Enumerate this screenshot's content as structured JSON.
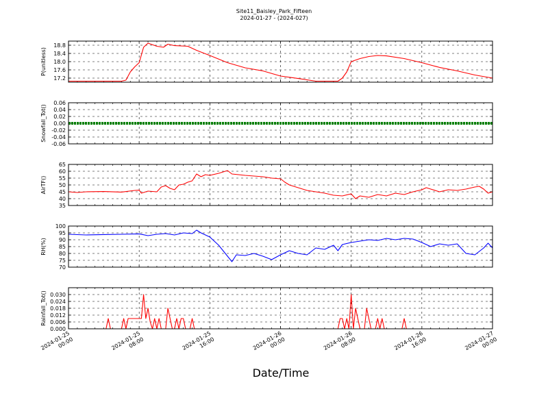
{
  "chart_data": {
    "type": "line",
    "title": "Site11_Baisley_Park_Fifteen",
    "subtitle": "2024-01-27 - (2024-027)",
    "xlabel": "Date/Time",
    "x_range": [
      "2024-01-25 00:00",
      "2024-01-27 00:00"
    ],
    "x_ticks": [
      {
        "value": "2024-01-25 00:00",
        "line1": "2024-01-25",
        "line2": "00:00"
      },
      {
        "value": "2024-01-25 08:00",
        "line1": "2024-01-25",
        "line2": "08:00"
      },
      {
        "value": "2024-01-25 16:00",
        "line1": "2024-01-25",
        "line2": "16:00"
      },
      {
        "value": "2024-01-26 00:00",
        "line1": "2024-01-26",
        "line2": "00:00"
      },
      {
        "value": "2024-01-26 08:00",
        "line1": "2024-01-26",
        "line2": "08:00"
      },
      {
        "value": "2024-01-26 16:00",
        "line1": "2024-01-26",
        "line2": "16:00"
      },
      {
        "value": "2024-01-27 00:00",
        "line1": "2024-01-27",
        "line2": "00:00"
      }
    ],
    "grid": true,
    "panels": [
      {
        "ylabel": "P(unitless)",
        "ylim": [
          17.0,
          19.0
        ],
        "yticks": [
          "18.8",
          "18.4",
          "18.0",
          "17.6",
          "17.2"
        ],
        "color": "#ff0000",
        "style": "line",
        "points": [
          [
            "2024-01-25 00:00",
            17.05
          ],
          [
            "2024-01-25 06:00",
            17.05
          ],
          [
            "2024-01-25 06:30",
            17.1
          ],
          [
            "2024-01-25 07:00",
            17.5
          ],
          [
            "2024-01-25 07:30",
            17.75
          ],
          [
            "2024-01-25 08:00",
            17.95
          ],
          [
            "2024-01-25 08:30",
            18.7
          ],
          [
            "2024-01-25 09:00",
            18.9
          ],
          [
            "2024-01-25 10:00",
            18.75
          ],
          [
            "2024-01-25 10:45",
            18.7
          ],
          [
            "2024-01-25 11:15",
            18.85
          ],
          [
            "2024-01-25 12:00",
            18.78
          ],
          [
            "2024-01-25 13:30",
            18.75
          ],
          [
            "2024-01-25 14:30",
            18.55
          ],
          [
            "2024-01-25 16:00",
            18.3
          ],
          [
            "2024-01-25 18:00",
            17.95
          ],
          [
            "2024-01-25 20:00",
            17.7
          ],
          [
            "2024-01-25 22:00",
            17.55
          ],
          [
            "2024-01-26 00:00",
            17.3
          ],
          [
            "2024-01-26 02:00",
            17.18
          ],
          [
            "2024-01-26 04:00",
            17.05
          ],
          [
            "2024-01-26 06:30",
            17.05
          ],
          [
            "2024-01-26 07:00",
            17.2
          ],
          [
            "2024-01-26 07:30",
            17.5
          ],
          [
            "2024-01-26 08:00",
            18.0
          ],
          [
            "2024-01-26 09:00",
            18.15
          ],
          [
            "2024-01-26 10:00",
            18.25
          ],
          [
            "2024-01-26 11:00",
            18.3
          ],
          [
            "2024-01-26 12:00",
            18.28
          ],
          [
            "2024-01-26 14:00",
            18.15
          ],
          [
            "2024-01-26 16:00",
            17.95
          ],
          [
            "2024-01-26 18:00",
            17.72
          ],
          [
            "2024-01-26 20:00",
            17.55
          ],
          [
            "2024-01-26 22:00",
            17.35
          ],
          [
            "2024-01-27 00:00",
            17.2
          ]
        ]
      },
      {
        "ylabel": "Snowfall_Tot()",
        "ylim": [
          -0.06,
          0.06
        ],
        "yticks": [
          "0.06",
          "0.04",
          "0.02",
          "0.00",
          "-0.02",
          "-0.04",
          "-0.06"
        ],
        "color": "#008000",
        "style": "thick-line",
        "points": [
          [
            "2024-01-25 00:00",
            0.0
          ],
          [
            "2024-01-27 00:00",
            0.0
          ]
        ]
      },
      {
        "ylabel": "AirTF()",
        "ylim": [
          35,
          65
        ],
        "yticks": [
          "65",
          "60",
          "55",
          "50",
          "45",
          "40",
          "35"
        ],
        "color": "#ff0000",
        "style": "line",
        "points": [
          [
            "2024-01-25 00:00",
            45
          ],
          [
            "2024-01-25 01:00",
            44.5
          ],
          [
            "2024-01-25 02:00",
            45
          ],
          [
            "2024-01-25 04:00",
            45.2
          ],
          [
            "2024-01-25 06:00",
            44.8
          ],
          [
            "2024-01-25 07:30",
            46
          ],
          [
            "2024-01-25 08:00",
            46.2
          ],
          [
            "2024-01-25 08:15",
            44
          ],
          [
            "2024-01-25 09:00",
            45.5
          ],
          [
            "2024-01-25 10:00",
            45
          ],
          [
            "2024-01-25 10:30",
            48.5
          ],
          [
            "2024-01-25 11:00",
            49.5
          ],
          [
            "2024-01-25 11:30",
            47.5
          ],
          [
            "2024-01-25 12:00",
            46.5
          ],
          [
            "2024-01-25 12:30",
            50
          ],
          [
            "2024-01-25 13:00",
            50.5
          ],
          [
            "2024-01-25 13:30",
            52
          ],
          [
            "2024-01-25 14:00",
            53
          ],
          [
            "2024-01-25 14:30",
            58
          ],
          [
            "2024-01-25 15:00",
            56
          ],
          [
            "2024-01-25 15:30",
            57.5
          ],
          [
            "2024-01-25 16:00",
            57
          ],
          [
            "2024-01-25 17:00",
            58.5
          ],
          [
            "2024-01-25 18:00",
            60.5
          ],
          [
            "2024-01-25 18:30",
            58
          ],
          [
            "2024-01-25 20:00",
            57
          ],
          [
            "2024-01-25 22:00",
            56
          ],
          [
            "2024-01-25 23:00",
            55
          ],
          [
            "2024-01-26 00:00",
            54.5
          ],
          [
            "2024-01-26 00:30",
            52
          ],
          [
            "2024-01-26 01:00",
            50
          ],
          [
            "2024-01-26 02:00",
            48
          ],
          [
            "2024-01-26 03:00",
            46
          ],
          [
            "2024-01-26 05:00",
            44
          ],
          [
            "2024-01-26 06:00",
            42.5
          ],
          [
            "2024-01-26 07:00",
            42
          ],
          [
            "2024-01-26 08:00",
            43.5
          ],
          [
            "2024-01-26 08:30",
            40
          ],
          [
            "2024-01-26 09:00",
            42
          ],
          [
            "2024-01-26 10:00",
            41
          ],
          [
            "2024-01-26 11:00",
            43
          ],
          [
            "2024-01-26 12:00",
            42
          ],
          [
            "2024-01-26 13:00",
            44
          ],
          [
            "2024-01-26 14:00",
            43
          ],
          [
            "2024-01-26 15:00",
            45
          ],
          [
            "2024-01-26 16:00",
            46.5
          ],
          [
            "2024-01-26 16:30",
            48
          ],
          [
            "2024-01-26 17:00",
            47
          ],
          [
            "2024-01-26 18:00",
            45
          ],
          [
            "2024-01-26 19:00",
            46.5
          ],
          [
            "2024-01-26 20:00",
            46
          ],
          [
            "2024-01-26 21:00",
            47
          ],
          [
            "2024-01-26 22:00",
            48.5
          ],
          [
            "2024-01-26 22:30",
            49
          ],
          [
            "2024-01-26 23:00",
            47
          ],
          [
            "2024-01-26 23:30",
            44
          ],
          [
            "2024-01-27 00:00",
            45
          ]
        ]
      },
      {
        "ylabel": "RH(%)",
        "ylim": [
          70,
          100
        ],
        "yticks": [
          "100",
          "95",
          "90",
          "85",
          "80",
          "75",
          "70"
        ],
        "color": "#0000ff",
        "style": "line",
        "points": [
          [
            "2024-01-25 00:00",
            94
          ],
          [
            "2024-01-25 02:00",
            93.5
          ],
          [
            "2024-01-25 04:00",
            93.8
          ],
          [
            "2024-01-25 06:00",
            94
          ],
          [
            "2024-01-25 08:00",
            94.3
          ],
          [
            "2024-01-25 09:00",
            93
          ],
          [
            "2024-01-25 10:00",
            94
          ],
          [
            "2024-01-25 11:00",
            94.5
          ],
          [
            "2024-01-25 12:00",
            93.5
          ],
          [
            "2024-01-25 13:00",
            95
          ],
          [
            "2024-01-25 14:00",
            94.5
          ],
          [
            "2024-01-25 14:30",
            97
          ],
          [
            "2024-01-25 15:00",
            95
          ],
          [
            "2024-01-25 16:00",
            92
          ],
          [
            "2024-01-25 17:00",
            86
          ],
          [
            "2024-01-25 18:00",
            78
          ],
          [
            "2024-01-25 18:30",
            74
          ],
          [
            "2024-01-25 19:00",
            79
          ],
          [
            "2024-01-25 20:00",
            78.5
          ],
          [
            "2024-01-25 21:00",
            80
          ],
          [
            "2024-01-25 22:00",
            78
          ],
          [
            "2024-01-25 23:00",
            75.5
          ],
          [
            "2024-01-26 00:00",
            79
          ],
          [
            "2024-01-26 01:00",
            82
          ],
          [
            "2024-01-26 02:00",
            80
          ],
          [
            "2024-01-26 03:00",
            79
          ],
          [
            "2024-01-26 04:00",
            84
          ],
          [
            "2024-01-26 05:00",
            83
          ],
          [
            "2024-01-26 06:00",
            86
          ],
          [
            "2024-01-26 06:30",
            82
          ],
          [
            "2024-01-26 07:00",
            86.5
          ],
          [
            "2024-01-26 08:00",
            88
          ],
          [
            "2024-01-26 09:00",
            89
          ],
          [
            "2024-01-26 10:00",
            90
          ],
          [
            "2024-01-26 11:00",
            89.5
          ],
          [
            "2024-01-26 12:00",
            91
          ],
          [
            "2024-01-26 13:00",
            90
          ],
          [
            "2024-01-26 14:00",
            91
          ],
          [
            "2024-01-26 15:00",
            90.5
          ],
          [
            "2024-01-26 16:00",
            88
          ],
          [
            "2024-01-26 17:00",
            85
          ],
          [
            "2024-01-26 18:00",
            87
          ],
          [
            "2024-01-26 19:00",
            86
          ],
          [
            "2024-01-26 20:00",
            87
          ],
          [
            "2024-01-26 21:00",
            80
          ],
          [
            "2024-01-26 22:00",
            79
          ],
          [
            "2024-01-26 23:00",
            84
          ],
          [
            "2024-01-26 23:30",
            87.5
          ],
          [
            "2024-01-27 00:00",
            84
          ]
        ]
      },
      {
        "ylabel": "Rainfall_Tot()",
        "ylim": [
          0,
          0.036
        ],
        "yticks": [
          "0.030",
          "0.024",
          "0.018",
          "0.012",
          "0.006",
          "0.000"
        ],
        "color": "#ff0000",
        "style": "line",
        "points": [
          [
            "2024-01-25 00:00",
            0
          ],
          [
            "2024-01-25 04:15",
            0
          ],
          [
            "2024-01-25 04:30",
            0.009
          ],
          [
            "2024-01-25 04:45",
            0
          ],
          [
            "2024-01-25 06:00",
            0
          ],
          [
            "2024-01-25 06:15",
            0.009
          ],
          [
            "2024-01-25 06:30",
            0
          ],
          [
            "2024-01-25 06:45",
            0.009
          ],
          [
            "2024-01-25 08:00",
            0.009
          ],
          [
            "2024-01-25 08:15",
            0.009
          ],
          [
            "2024-01-25 08:30",
            0.03
          ],
          [
            "2024-01-25 08:45",
            0.009
          ],
          [
            "2024-01-25 09:00",
            0.018
          ],
          [
            "2024-01-25 09:15",
            0.006
          ],
          [
            "2024-01-25 09:30",
            0
          ],
          [
            "2024-01-25 09:45",
            0.009
          ],
          [
            "2024-01-25 10:00",
            0
          ],
          [
            "2024-01-25 10:15",
            0.009
          ],
          [
            "2024-01-25 10:30",
            0
          ],
          [
            "2024-01-25 11:00",
            0
          ],
          [
            "2024-01-25 11:15",
            0.018
          ],
          [
            "2024-01-25 11:30",
            0.009
          ],
          [
            "2024-01-25 11:45",
            0
          ],
          [
            "2024-01-25 12:00",
            0
          ],
          [
            "2024-01-25 12:15",
            0.009
          ],
          [
            "2024-01-25 12:30",
            0
          ],
          [
            "2024-01-25 12:45",
            0.009
          ],
          [
            "2024-01-25 13:00",
            0.009
          ],
          [
            "2024-01-25 13:15",
            0
          ],
          [
            "2024-01-25 13:45",
            0
          ],
          [
            "2024-01-25 14:00",
            0.009
          ],
          [
            "2024-01-25 14:15",
            0
          ],
          [
            "2024-01-26 06:30",
            0
          ],
          [
            "2024-01-26 06:45",
            0.009
          ],
          [
            "2024-01-26 07:00",
            0.009
          ],
          [
            "2024-01-26 07:15",
            0
          ],
          [
            "2024-01-26 07:30",
            0.009
          ],
          [
            "2024-01-26 07:45",
            0
          ],
          [
            "2024-01-26 08:00",
            0.03
          ],
          [
            "2024-01-26 08:15",
            0
          ],
          [
            "2024-01-26 08:30",
            0.018
          ],
          [
            "2024-01-26 08:45",
            0.009
          ],
          [
            "2024-01-26 09:00",
            0
          ],
          [
            "2024-01-26 09:30",
            0
          ],
          [
            "2024-01-26 09:45",
            0.018
          ],
          [
            "2024-01-26 10:00",
            0.009
          ],
          [
            "2024-01-26 10:15",
            0
          ],
          [
            "2024-01-26 10:45",
            0
          ],
          [
            "2024-01-26 11:00",
            0.009
          ],
          [
            "2024-01-26 11:15",
            0
          ],
          [
            "2024-01-26 11:30",
            0.009
          ],
          [
            "2024-01-26 11:45",
            0
          ],
          [
            "2024-01-26 13:45",
            0
          ],
          [
            "2024-01-26 14:00",
            0.009
          ],
          [
            "2024-01-26 14:15",
            0
          ],
          [
            "2024-01-27 00:00",
            0
          ]
        ]
      }
    ]
  }
}
